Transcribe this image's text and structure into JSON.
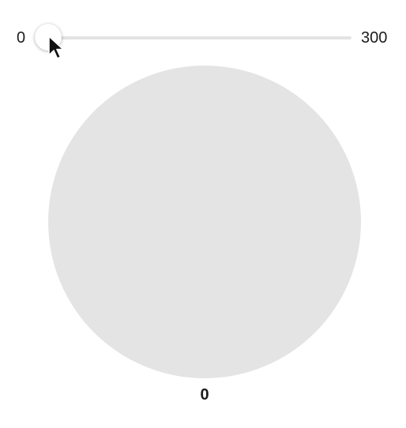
{
  "slider": {
    "min_label": "0",
    "max_label": "300",
    "value_fraction": 0.0
  },
  "preview": {
    "fill_color": "#e4e4e4"
  },
  "readout": {
    "value_label": "0"
  },
  "cursor": {
    "icon": "arrow-pointer-icon"
  }
}
